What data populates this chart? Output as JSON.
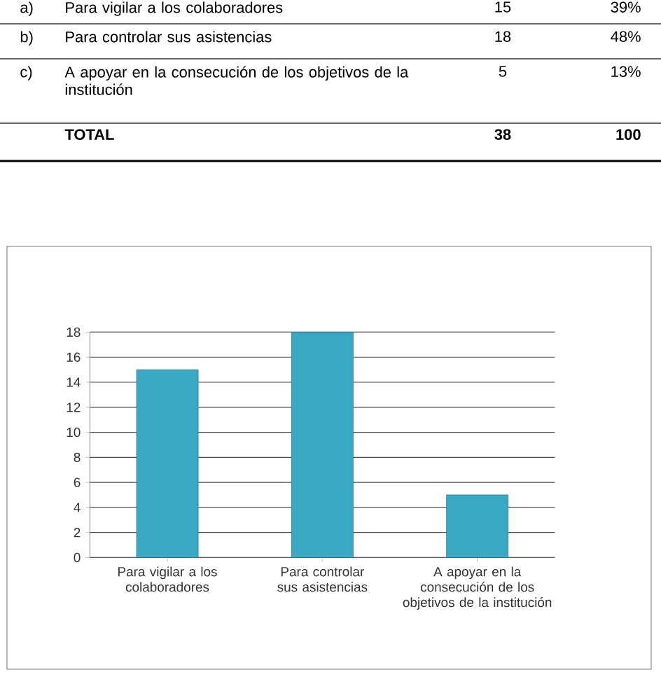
{
  "chart_data": {
    "type": "bar",
    "categories": [
      "Para vigilar a los colaboradores",
      "Para controlar sus asistencias",
      "A apoyar en la consecución de los objetivos de la institución"
    ],
    "values": [
      15,
      18,
      5
    ],
    "color": "#3aa9c4",
    "ylim": [
      0,
      18
    ],
    "yticks": [
      0,
      2,
      4,
      6,
      8,
      10,
      12,
      14,
      16,
      18
    ],
    "grid": "y",
    "annotations": [
      "a)",
      "Para vigilar a los colaboradores",
      "15",
      "39%",
      "b)",
      "Para controlar sus asistencias",
      "18",
      "48%",
      "c)",
      "A apoyar en la consecución de los objetivos de la institución",
      "5",
      "13%",
      "**TOTAL**",
      "**38**",
      "**100**"
    ]
  }
}
